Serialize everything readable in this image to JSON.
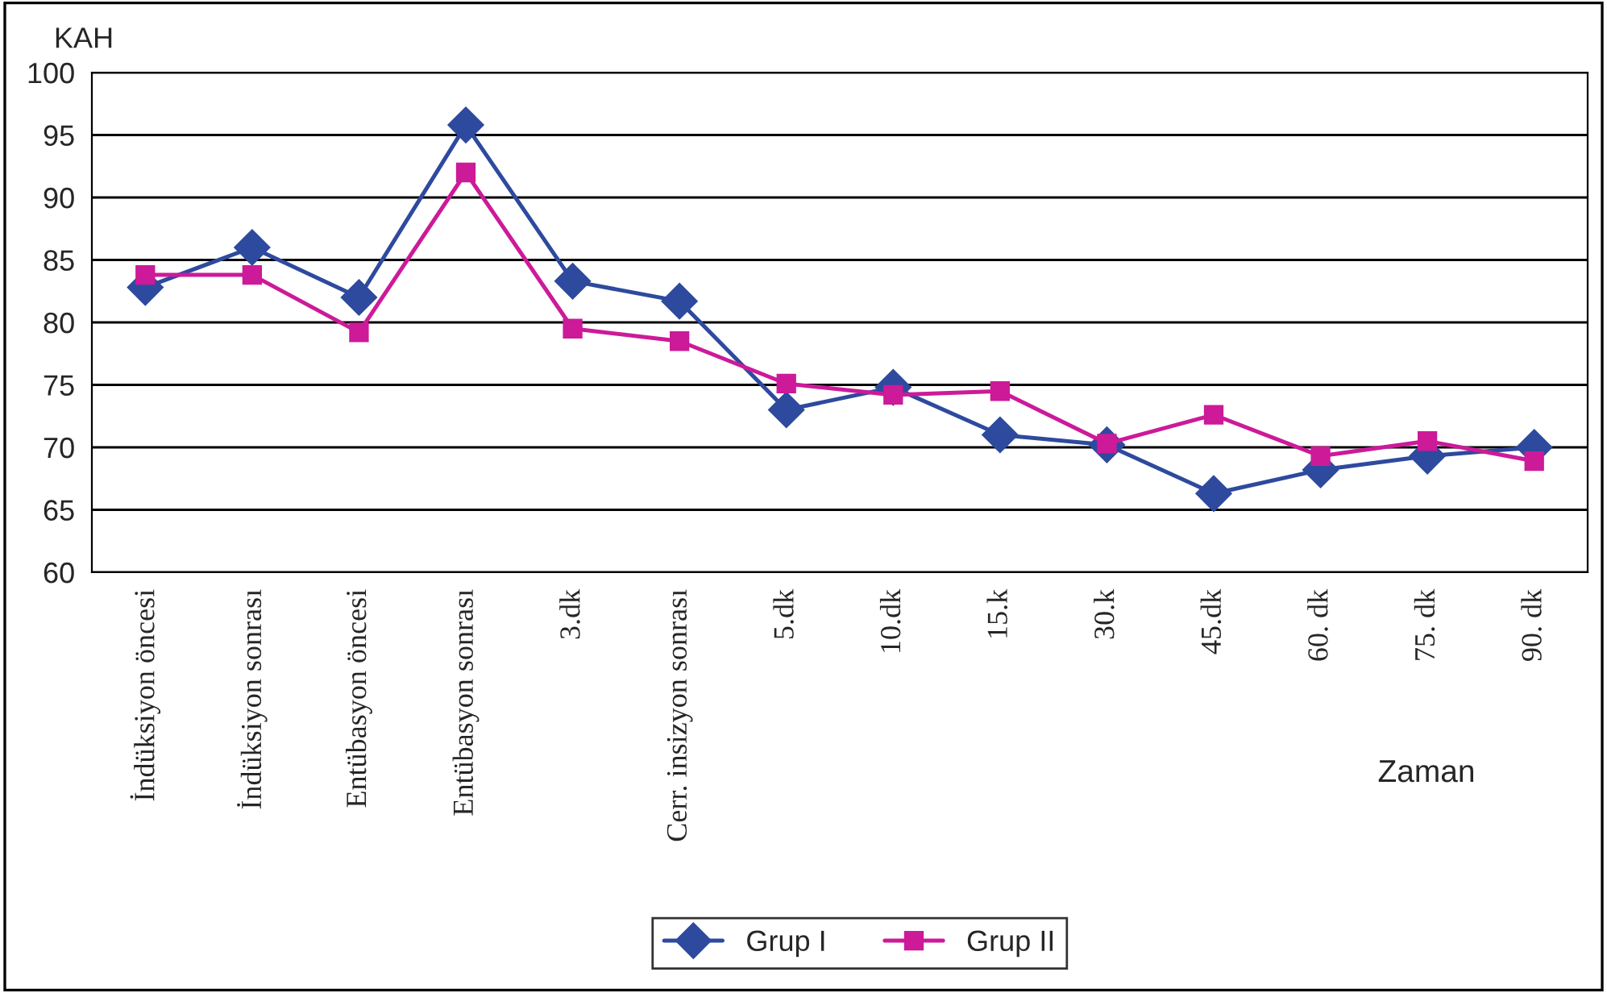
{
  "chart_data": {
    "type": "line",
    "xlabel": "Zaman",
    "ylabel": "KAH",
    "categories": [
      "İndüksiyon öncesi",
      "İndüksiyon sonrası",
      "Entübasyon öncesi",
      "Entübasyon sonrası",
      "3.dk",
      "Cerr. insizyon sonrası",
      "5.dk",
      "10.dk",
      "15.k",
      "30.k",
      "45.dk",
      "60. dk",
      "75. dk",
      "90. dk"
    ],
    "series": [
      {
        "name": "Grup I",
        "color": "#2e4a9e",
        "marker": "diamond",
        "values": [
          82.8,
          86,
          82,
          95.8,
          83.3,
          81.7,
          73,
          74.8,
          71,
          70.2,
          66.3,
          68.2,
          69.3,
          70
        ]
      },
      {
        "name": "Grup II",
        "color": "#cc1a99",
        "marker": "square",
        "values": [
          83.8,
          83.8,
          79.2,
          92,
          79.5,
          78.5,
          75.1,
          74.2,
          74.5,
          70.3,
          72.6,
          69.3,
          70.5,
          68.9
        ]
      }
    ],
    "ylim": [
      60,
      100
    ],
    "yticks": [
      60,
      65,
      70,
      75,
      80,
      85,
      90,
      95,
      100
    ],
    "grid": "y",
    "legend": "bottom",
    "line_style": "solid"
  }
}
